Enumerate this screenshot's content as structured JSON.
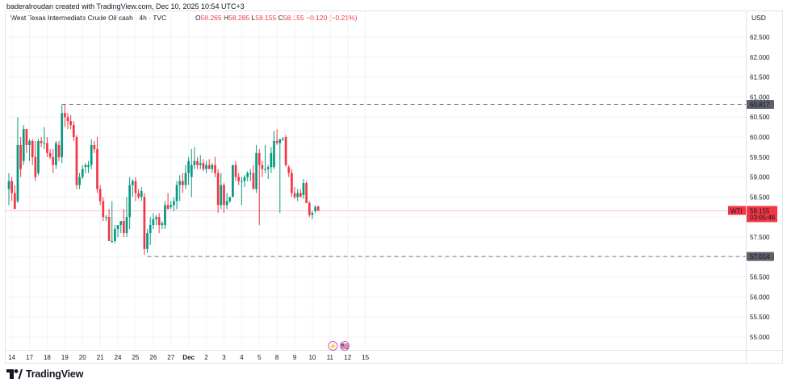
{
  "header": {
    "creator": "baderalroudan created with TradingView.com, Dec 10, 2025 10:54 UTC+3",
    "symbol": "West Texas Intermediate Crude Oil cash · 4h · TVC",
    "ohlc": {
      "o_label": "O",
      "o_value": "58.265",
      "h_label": "H",
      "h_value": "58.285",
      "l_label": "L",
      "l_value": "58.155",
      "c_label": "C",
      "c_value": "58.155 −0.120 (−0.21%)"
    },
    "currency": "USD"
  },
  "footer": {
    "brand": "TradingView"
  },
  "colors": {
    "up": "#089981",
    "down": "#f23645",
    "grid": "#f2f3f5",
    "dashed": "#787b86",
    "label_bg": "#5d606b"
  },
  "chart_data": {
    "type": "candlestick",
    "y_ticks": [
      "62.500",
      "62.000",
      "61.500",
      "61.000",
      "60.500",
      "60.000",
      "59.500",
      "59.000",
      "58.500",
      "58.000",
      "57.500",
      "57.000",
      "56.500",
      "56.000",
      "55.500",
      "55.000"
    ],
    "ylim": [
      54.75,
      62.75
    ],
    "x_ticks": [
      {
        "label": "14",
        "bar": 1
      },
      {
        "label": "17",
        "bar": 7
      },
      {
        "label": "18",
        "bar": 13
      },
      {
        "label": "19",
        "bar": 19
      },
      {
        "label": "20",
        "bar": 25
      },
      {
        "label": "21",
        "bar": 31
      },
      {
        "label": "24",
        "bar": 37
      },
      {
        "label": "25",
        "bar": 43
      },
      {
        "label": "26",
        "bar": 49
      },
      {
        "label": "27",
        "bar": 55
      },
      {
        "label": "Dec",
        "bar": 61
      },
      {
        "label": "2",
        "bar": 67
      },
      {
        "label": "3",
        "bar": 73
      },
      {
        "label": "4",
        "bar": 79
      },
      {
        "label": "5",
        "bar": 85
      },
      {
        "label": "8",
        "bar": 91
      },
      {
        "label": "9",
        "bar": 97
      },
      {
        "label": "10",
        "bar": 103
      },
      {
        "label": "11",
        "bar": 109
      },
      {
        "label": "12",
        "bar": 115
      },
      {
        "label": "15",
        "bar": 121
      }
    ],
    "candles": [
      {
        "o": 58.7,
        "h": 59.1,
        "l": 58.3,
        "c": 58.9
      },
      {
        "o": 58.9,
        "h": 59.0,
        "l": 58.4,
        "c": 58.6
      },
      {
        "o": 58.6,
        "h": 58.8,
        "l": 58.2,
        "c": 58.2
      },
      {
        "o": 58.4,
        "h": 60.5,
        "l": 58.35,
        "c": 59.8
      },
      {
        "o": 59.8,
        "h": 60.0,
        "l": 59.0,
        "c": 59.2
      },
      {
        "o": 59.4,
        "h": 60.3,
        "l": 59.3,
        "c": 60.2
      },
      {
        "o": 60.2,
        "h": 60.2,
        "l": 59.6,
        "c": 59.8
      },
      {
        "o": 59.8,
        "h": 59.95,
        "l": 59.4,
        "c": 59.9
      },
      {
        "o": 59.9,
        "h": 59.95,
        "l": 59.3,
        "c": 59.5
      },
      {
        "o": 59.5,
        "h": 59.9,
        "l": 58.9,
        "c": 59.0
      },
      {
        "o": 59.1,
        "h": 59.95,
        "l": 59.05,
        "c": 59.9
      },
      {
        "o": 59.9,
        "h": 60.0,
        "l": 59.75,
        "c": 59.85
      },
      {
        "o": 59.85,
        "h": 60.25,
        "l": 59.7,
        "c": 59.85
      },
      {
        "o": 59.85,
        "h": 60.0,
        "l": 59.5,
        "c": 59.6
      },
      {
        "o": 59.6,
        "h": 59.7,
        "l": 59.45,
        "c": 59.5
      },
      {
        "o": 59.5,
        "h": 59.7,
        "l": 59.1,
        "c": 59.3
      },
      {
        "o": 59.3,
        "h": 59.9,
        "l": 59.2,
        "c": 59.85
      },
      {
        "o": 59.8,
        "h": 59.9,
        "l": 59.4,
        "c": 59.5
      },
      {
        "o": 59.5,
        "h": 60.8,
        "l": 59.35,
        "c": 60.6
      },
      {
        "o": 60.6,
        "h": 60.82,
        "l": 60.25,
        "c": 60.5
      },
      {
        "o": 60.5,
        "h": 60.6,
        "l": 60.2,
        "c": 60.4
      },
      {
        "o": 60.4,
        "h": 60.55,
        "l": 60.2,
        "c": 60.3
      },
      {
        "o": 60.3,
        "h": 60.4,
        "l": 59.9,
        "c": 60.0
      },
      {
        "o": 60.0,
        "h": 60.05,
        "l": 58.7,
        "c": 58.8
      },
      {
        "o": 58.8,
        "h": 59.1,
        "l": 58.7,
        "c": 59.0
      },
      {
        "o": 59.0,
        "h": 59.3,
        "l": 58.95,
        "c": 59.2
      },
      {
        "o": 59.25,
        "h": 59.35,
        "l": 59.1,
        "c": 59.3
      },
      {
        "o": 59.25,
        "h": 59.4,
        "l": 59.1,
        "c": 59.3
      },
      {
        "o": 59.3,
        "h": 59.95,
        "l": 59.2,
        "c": 59.8
      },
      {
        "o": 59.8,
        "h": 59.9,
        "l": 59.6,
        "c": 59.7
      },
      {
        "o": 59.7,
        "h": 60.0,
        "l": 58.6,
        "c": 58.7
      },
      {
        "o": 58.7,
        "h": 58.8,
        "l": 58.3,
        "c": 58.4
      },
      {
        "o": 58.4,
        "h": 58.5,
        "l": 57.9,
        "c": 58.0
      },
      {
        "o": 58.0,
        "h": 58.05,
        "l": 57.9,
        "c": 58.0
      },
      {
        "o": 58.0,
        "h": 58.2,
        "l": 57.4,
        "c": 57.4
      },
      {
        "o": 57.4,
        "h": 58.4,
        "l": 57.35,
        "c": 57.4
      },
      {
        "o": 57.4,
        "h": 57.8,
        "l": 57.35,
        "c": 57.7
      },
      {
        "o": 57.7,
        "h": 57.8,
        "l": 57.5,
        "c": 57.8
      },
      {
        "o": 57.8,
        "h": 57.9,
        "l": 57.6,
        "c": 57.9
      },
      {
        "o": 57.9,
        "h": 58.2,
        "l": 57.5,
        "c": 57.6
      },
      {
        "o": 57.6,
        "h": 58.5,
        "l": 57.5,
        "c": 58.0
      },
      {
        "o": 58.0,
        "h": 59.0,
        "l": 57.7,
        "c": 58.8
      },
      {
        "o": 58.8,
        "h": 58.95,
        "l": 58.5,
        "c": 58.9
      },
      {
        "o": 58.9,
        "h": 59.0,
        "l": 58.4,
        "c": 58.6
      },
      {
        "o": 58.6,
        "h": 58.7,
        "l": 58.45,
        "c": 58.5
      },
      {
        "o": 58.5,
        "h": 58.75,
        "l": 58.4,
        "c": 58.65
      },
      {
        "o": 58.5,
        "h": 58.6,
        "l": 57.05,
        "c": 57.2
      },
      {
        "o": 57.2,
        "h": 57.7,
        "l": 57.1,
        "c": 57.6
      },
      {
        "o": 57.6,
        "h": 58.0,
        "l": 57.3,
        "c": 57.8
      },
      {
        "o": 57.8,
        "h": 58.1,
        "l": 57.7,
        "c": 57.95
      },
      {
        "o": 57.95,
        "h": 58.05,
        "l": 57.8,
        "c": 58.0
      },
      {
        "o": 58.0,
        "h": 58.1,
        "l": 57.6,
        "c": 57.8
      },
      {
        "o": 57.8,
        "h": 57.9,
        "l": 57.7,
        "c": 57.85
      },
      {
        "o": 57.8,
        "h": 58.4,
        "l": 57.7,
        "c": 58.3
      },
      {
        "o": 58.3,
        "h": 58.6,
        "l": 58.2,
        "c": 58.2
      },
      {
        "o": 58.25,
        "h": 58.4,
        "l": 58.2,
        "c": 58.3
      },
      {
        "o": 58.3,
        "h": 58.5,
        "l": 58.15,
        "c": 58.4
      },
      {
        "o": 58.4,
        "h": 58.9,
        "l": 58.2,
        "c": 58.8
      },
      {
        "o": 58.8,
        "h": 59.05,
        "l": 58.4,
        "c": 58.9
      },
      {
        "o": 58.9,
        "h": 59.1,
        "l": 58.6,
        "c": 58.8
      },
      {
        "o": 58.8,
        "h": 59.3,
        "l": 58.7,
        "c": 59.1
      },
      {
        "o": 59.1,
        "h": 59.5,
        "l": 58.8,
        "c": 59.4
      },
      {
        "o": 59.0,
        "h": 59.7,
        "l": 58.5,
        "c": 59.3
      },
      {
        "o": 59.3,
        "h": 59.75,
        "l": 59.2,
        "c": 59.4
      },
      {
        "o": 59.4,
        "h": 59.5,
        "l": 59.2,
        "c": 59.3
      },
      {
        "o": 59.3,
        "h": 59.55,
        "l": 59.2,
        "c": 59.35
      },
      {
        "o": 59.35,
        "h": 59.45,
        "l": 59.15,
        "c": 59.2
      },
      {
        "o": 59.2,
        "h": 59.4,
        "l": 59.1,
        "c": 59.3
      },
      {
        "o": 59.3,
        "h": 59.45,
        "l": 59.2,
        "c": 59.2
      },
      {
        "o": 59.2,
        "h": 59.35,
        "l": 59.1,
        "c": 59.3
      },
      {
        "o": 59.3,
        "h": 59.5,
        "l": 59.0,
        "c": 59.1
      },
      {
        "o": 59.1,
        "h": 59.2,
        "l": 58.1,
        "c": 58.3
      },
      {
        "o": 58.3,
        "h": 59.1,
        "l": 58.2,
        "c": 58.8
      },
      {
        "o": 58.8,
        "h": 58.85,
        "l": 58.1,
        "c": 58.3
      },
      {
        "o": 58.3,
        "h": 58.6,
        "l": 58.2,
        "c": 58.4
      },
      {
        "o": 58.4,
        "h": 58.5,
        "l": 58.35,
        "c": 58.5
      },
      {
        "o": 58.5,
        "h": 59.3,
        "l": 58.5,
        "c": 59.3
      },
      {
        "o": 59.3,
        "h": 59.4,
        "l": 58.9,
        "c": 59.0
      },
      {
        "o": 59.0,
        "h": 59.1,
        "l": 58.8,
        "c": 58.9
      },
      {
        "o": 58.9,
        "h": 59.0,
        "l": 58.3,
        "c": 58.9
      },
      {
        "o": 58.9,
        "h": 59.05,
        "l": 58.75,
        "c": 59.0
      },
      {
        "o": 59.0,
        "h": 59.15,
        "l": 58.9,
        "c": 59.1
      },
      {
        "o": 59.1,
        "h": 59.2,
        "l": 58.9,
        "c": 59.1
      },
      {
        "o": 59.1,
        "h": 59.3,
        "l": 58.7,
        "c": 58.7
      },
      {
        "o": 58.7,
        "h": 59.8,
        "l": 58.6,
        "c": 59.6
      },
      {
        "o": 59.6,
        "h": 59.7,
        "l": 57.8,
        "c": 59.3
      },
      {
        "o": 59.3,
        "h": 59.4,
        "l": 59.0,
        "c": 59.2
      },
      {
        "o": 59.2,
        "h": 59.8,
        "l": 59.1,
        "c": 59.2
      },
      {
        "o": 59.2,
        "h": 59.3,
        "l": 58.95,
        "c": 59.25
      },
      {
        "o": 59.25,
        "h": 59.75,
        "l": 59.1,
        "c": 59.6
      },
      {
        "o": 59.25,
        "h": 60.15,
        "l": 59.2,
        "c": 59.9
      },
      {
        "o": 59.9,
        "h": 60.2,
        "l": 59.8,
        "c": 59.85
      },
      {
        "o": 59.85,
        "h": 59.9,
        "l": 58.1,
        "c": 59.95
      },
      {
        "o": 59.95,
        "h": 60.0,
        "l": 59.9,
        "c": 59.95
      },
      {
        "o": 60.0,
        "h": 60.05,
        "l": 59.25,
        "c": 59.3
      },
      {
        "o": 59.25,
        "h": 59.3,
        "l": 59.0,
        "c": 59.1
      },
      {
        "o": 59.1,
        "h": 59.2,
        "l": 58.5,
        "c": 58.6
      },
      {
        "o": 58.6,
        "h": 58.75,
        "l": 58.45,
        "c": 58.5
      },
      {
        "o": 58.5,
        "h": 58.7,
        "l": 58.4,
        "c": 58.6
      },
      {
        "o": 58.6,
        "h": 58.7,
        "l": 58.5,
        "c": 58.5
      },
      {
        "o": 58.55,
        "h": 58.95,
        "l": 58.45,
        "c": 58.85
      },
      {
        "o": 58.85,
        "h": 58.9,
        "l": 58.35,
        "c": 58.35
      },
      {
        "o": 58.35,
        "h": 58.4,
        "l": 58.0,
        "c": 58.05
      },
      {
        "o": 58.05,
        "h": 58.15,
        "l": 57.95,
        "c": 58.1
      },
      {
        "o": 58.15,
        "h": 58.3,
        "l": 58.1,
        "c": 58.25
      },
      {
        "o": 58.265,
        "h": 58.285,
        "l": 58.155,
        "c": 58.155
      }
    ],
    "resistance": {
      "value": 60.817,
      "label": "60.817",
      "start_bar": 18
    },
    "support": {
      "value": 57.014,
      "label": "57.014",
      "start_bar": 47
    },
    "last_price": {
      "value": 58.155,
      "symbol": "WTI",
      "price_label": "58.155",
      "timer": "03:05:46"
    },
    "event_markers": [
      {
        "bar": 110,
        "icon": "lightning-icon",
        "symbol": "⚡"
      },
      {
        "bar": 114,
        "icon": "us-flag-icon",
        "symbol": "🇺🇸"
      }
    ]
  }
}
